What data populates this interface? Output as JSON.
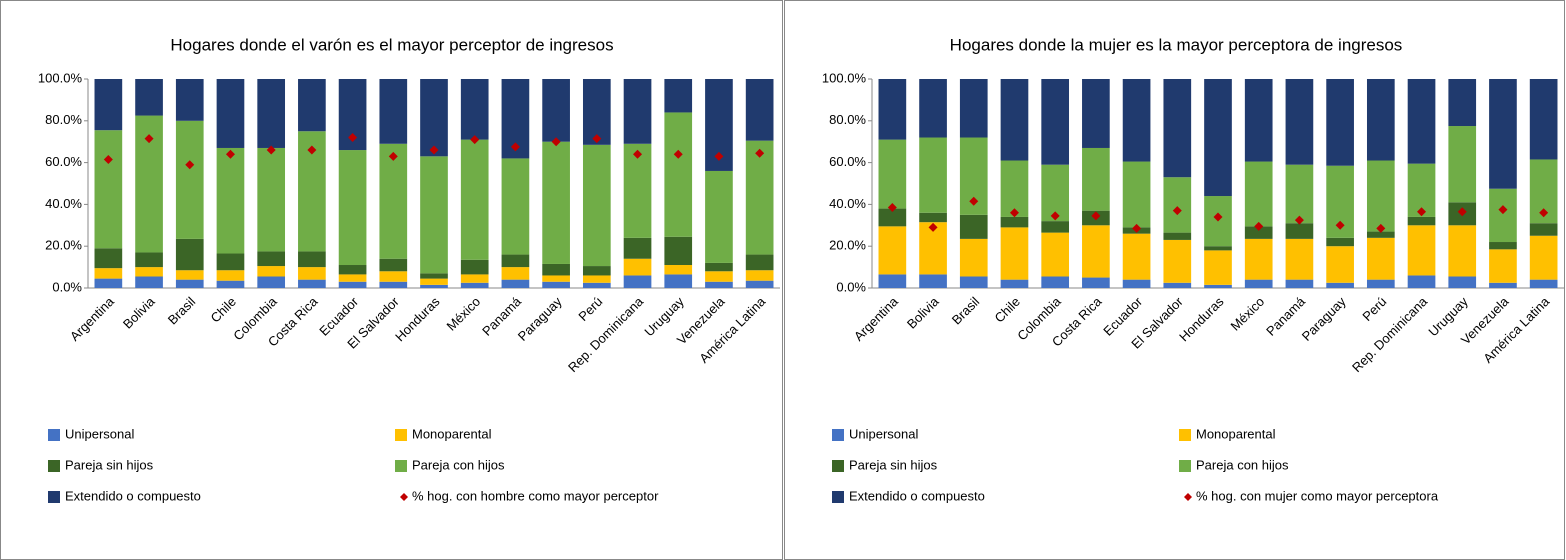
{
  "chart_data": [
    {
      "type": "bar",
      "stacked": true,
      "title": "Hogares donde el varón es el mayor perceptor de ingresos",
      "categories": [
        "Argentina",
        "Bolivia",
        "Brasil",
        "Chile",
        "Colombia",
        "Costa Rica",
        "Ecuador",
        "El Salvador",
        "Honduras",
        "México",
        "Panamá",
        "Paraguay",
        "Perú",
        "Rep. Dominicana",
        "Uruguay",
        "Venezuela",
        "América Latina"
      ],
      "ylim": [
        0,
        100
      ],
      "yticks": [
        {
          "value": 0,
          "label": "0.0%"
        },
        {
          "value": 20,
          "label": "20.0%"
        },
        {
          "value": 40,
          "label": "40.0%"
        },
        {
          "value": 60,
          "label": "60.0%"
        },
        {
          "value": 80,
          "label": "80.0%"
        },
        {
          "value": 100,
          "label": "100.0%"
        }
      ],
      "series": [
        {
          "name": "Unipersonal",
          "color": "#4472c4",
          "values": [
            4.5,
            5.5,
            4,
            3.5,
            5.5,
            4,
            3,
            3,
            1.5,
            2.5,
            4,
            3,
            2.5,
            6,
            6.5,
            3,
            3.5
          ]
        },
        {
          "name": "Monoparental",
          "color": "#ffc000",
          "values": [
            5,
            4.5,
            4.5,
            5,
            5,
            6,
            3.5,
            5,
            3,
            4,
            6,
            3,
            3.5,
            8,
            4.5,
            5,
            5
          ]
        },
        {
          "name": "Pareja sin hijos",
          "color": "#3b6526",
          "values": [
            9.5,
            7,
            15,
            8,
            7,
            7.5,
            4.5,
            6,
            2.5,
            7,
            6,
            5.5,
            4.5,
            10,
            13.5,
            4,
            7.5
          ]
        },
        {
          "name": "Pareja con hijos",
          "color": "#70ad47",
          "values": [
            56.5,
            65.5,
            56.5,
            50.5,
            49.5,
            57.5,
            55,
            55,
            56,
            57.5,
            46,
            58.5,
            58,
            45,
            59.5,
            44,
            54.5
          ]
        },
        {
          "name": "Extendido o compuesto",
          "color": "#203a6e",
          "values": [
            24.5,
            17.5,
            20,
            33,
            33,
            25,
            34,
            31,
            37,
            29,
            38,
            30,
            31.5,
            31,
            16,
            44,
            29.5
          ]
        },
        {
          "name": "% hog. con hombre como mayor perceptor",
          "type": "scatter",
          "color": "#c00000",
          "values": [
            61.5,
            71.5,
            59,
            64,
            66,
            66,
            72,
            63,
            66,
            71,
            67.5,
            70,
            71.5,
            64,
            64,
            63,
            64.5
          ]
        }
      ]
    },
    {
      "type": "bar",
      "stacked": true,
      "title": "Hogares donde la mujer es la mayor perceptora de ingresos",
      "categories": [
        "Argentina",
        "Bolivia",
        "Brasil",
        "Chile",
        "Colombia",
        "Costa Rica",
        "Ecuador",
        "El Salvador",
        "Honduras",
        "México",
        "Panamá",
        "Paraguay",
        "Perú",
        "Rep. Dominicana",
        "Uruguay",
        "Venezuela",
        "América Latina"
      ],
      "ylim": [
        0,
        100
      ],
      "yticks": [
        {
          "value": 0,
          "label": "0.0%"
        },
        {
          "value": 20,
          "label": "20.0%"
        },
        {
          "value": 40,
          "label": "40.0%"
        },
        {
          "value": 60,
          "label": "60.0%"
        },
        {
          "value": 80,
          "label": "80.0%"
        },
        {
          "value": 100,
          "label": "100.0%"
        }
      ],
      "series": [
        {
          "name": "Unipersonal",
          "color": "#4472c4",
          "values": [
            6.5,
            6.5,
            5.5,
            4,
            5.5,
            5,
            4,
            2.5,
            1.5,
            4,
            4,
            2.5,
            4,
            6,
            5.5,
            2.5,
            4
          ]
        },
        {
          "name": "Monoparental",
          "color": "#ffc000",
          "values": [
            23,
            25,
            18,
            25,
            21,
            25,
            22,
            20.5,
            16.5,
            19.5,
            19.5,
            17.5,
            20,
            24,
            24.5,
            16,
            21
          ]
        },
        {
          "name": "Pareja sin hijos",
          "color": "#3b6526",
          "values": [
            8.5,
            4.5,
            11.5,
            5,
            5.5,
            7,
            3,
            3.5,
            2,
            6,
            7.5,
            4,
            3,
            4,
            11,
            3.5,
            6
          ]
        },
        {
          "name": "Pareja con hijos",
          "color": "#70ad47",
          "values": [
            33,
            36,
            37,
            27,
            27,
            30,
            31.5,
            26.5,
            24,
            31,
            28,
            34.5,
            34,
            25.5,
            36.5,
            25.5,
            30.5
          ]
        },
        {
          "name": "Extendido o compuesto",
          "color": "#203a6e",
          "values": [
            29,
            28,
            28,
            39,
            41,
            33,
            39.5,
            47,
            56,
            39.5,
            41,
            41.5,
            39,
            40.5,
            22.5,
            52.5,
            38.5
          ]
        },
        {
          "name": "% hog. con mujer como mayor perceptora",
          "type": "scatter",
          "color": "#c00000",
          "values": [
            38.5,
            29,
            41.5,
            36,
            34.5,
            34.5,
            28.5,
            37,
            34,
            29.5,
            32.5,
            30,
            28.5,
            36.5,
            36.5,
            37.5,
            36
          ]
        }
      ]
    }
  ]
}
